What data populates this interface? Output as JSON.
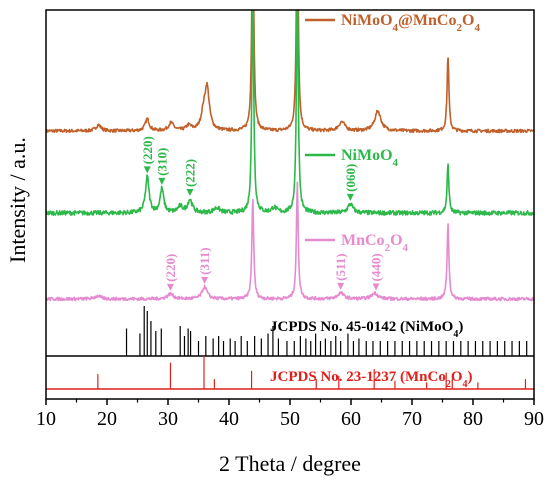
{
  "chart_data": {
    "type": "line",
    "xlabel": "2 Theta / degree",
    "ylabel": "Intensity / a.u.",
    "xlim": [
      10,
      90
    ],
    "xticks": [
      10,
      20,
      30,
      40,
      50,
      60,
      70,
      80,
      90
    ],
    "grid": false,
    "legend_placement": "inline-right",
    "colors": {
      "composite": "#c0602a",
      "nimoo4": "#2db84a",
      "mnco2o4": "#e58bd0",
      "ref_nimoo4": "#000000",
      "ref_mnco2o4": "#e0201a"
    },
    "series": [
      {
        "key": "composite",
        "name": "NiMoO₄@MnCo₂O₄",
        "name_main": "NiMoO",
        "name_sub1": "4",
        "name_mid": "@MnCo",
        "name_sub2": "2",
        "name_mid2": "O",
        "name_sub3": "4",
        "peaks": [
          {
            "x": 18.6,
            "h": 6,
            "w": 0.5
          },
          {
            "x": 26.6,
            "h": 12,
            "w": 0.4
          },
          {
            "x": 30.5,
            "h": 8,
            "w": 0.5
          },
          {
            "x": 33.4,
            "h": 5,
            "w": 0.5
          },
          {
            "x": 35.8,
            "h": 14,
            "w": 0.45
          },
          {
            "x": 36.4,
            "h": 42,
            "w": 0.45
          },
          {
            "x": 43.9,
            "h": 230,
            "w": 0.18
          },
          {
            "x": 51.2,
            "h": 230,
            "w": 0.18
          },
          {
            "x": 58.5,
            "h": 9,
            "w": 0.6
          },
          {
            "x": 64.4,
            "h": 20,
            "w": 0.6
          },
          {
            "x": 75.9,
            "h": 75,
            "w": 0.18
          }
        ]
      },
      {
        "key": "nimoo4",
        "name": "NiMoO₄",
        "name_main": "NiMoO",
        "name_sub1": "4",
        "peaks": [
          {
            "x": 26.6,
            "h": 36,
            "w": 0.35
          },
          {
            "x": 29.0,
            "h": 24,
            "w": 0.35
          },
          {
            "x": 32.0,
            "h": 6,
            "w": 0.5
          },
          {
            "x": 33.6,
            "h": 13,
            "w": 0.45
          },
          {
            "x": 38.0,
            "h": 5,
            "w": 0.6
          },
          {
            "x": 43.9,
            "h": 230,
            "w": 0.18
          },
          {
            "x": 47.4,
            "h": 5,
            "w": 0.5
          },
          {
            "x": 51.2,
            "h": 230,
            "w": 0.18
          },
          {
            "x": 59.9,
            "h": 9,
            "w": 0.5
          },
          {
            "x": 75.9,
            "h": 48,
            "w": 0.18
          }
        ]
      },
      {
        "key": "mnco2o4",
        "name": "MnCo₂O₄",
        "name_main": "MnCo",
        "name_sub1": "2",
        "name_mid": "O",
        "name_sub2": "4",
        "peaks": [
          {
            "x": 18.5,
            "h": 3,
            "w": 0.6
          },
          {
            "x": 30.4,
            "h": 5,
            "w": 0.6
          },
          {
            "x": 36.0,
            "h": 12,
            "w": 0.5
          },
          {
            "x": 43.9,
            "h": 100,
            "w": 0.18
          },
          {
            "x": 51.2,
            "h": 115,
            "w": 0.18
          },
          {
            "x": 58.3,
            "h": 6,
            "w": 0.6
          },
          {
            "x": 63.9,
            "h": 6,
            "w": 0.6
          },
          {
            "x": 75.9,
            "h": 75,
            "w": 0.18
          }
        ]
      }
    ],
    "annotations": [
      {
        "label": "(220)",
        "x": 26.6,
        "series": "nimoo4"
      },
      {
        "label": "(310)",
        "x": 29.0,
        "series": "nimoo4"
      },
      {
        "label": "(222)",
        "x": 33.6,
        "series": "nimoo4"
      },
      {
        "label": "(060)",
        "x": 59.9,
        "series": "nimoo4"
      },
      {
        "label": "(220)",
        "x": 30.4,
        "series": "mnco2o4"
      },
      {
        "label": "(311)",
        "x": 36.0,
        "series": "mnco2o4"
      },
      {
        "label": "(511)",
        "x": 58.3,
        "series": "mnco2o4"
      },
      {
        "label": "(440)",
        "x": 64.1,
        "series": "mnco2o4"
      }
    ],
    "references": [
      {
        "key": "ref_nimoo4",
        "label_main": "JCPDS No. 45-0142 (NiMoO",
        "label_sub": "4",
        "label_end": ")",
        "lines": [
          {
            "x": 23.2,
            "h": 0.55
          },
          {
            "x": 25.4,
            "h": 0.45
          },
          {
            "x": 26.1,
            "h": 1.0
          },
          {
            "x": 26.6,
            "h": 0.9
          },
          {
            "x": 27.2,
            "h": 0.7
          },
          {
            "x": 28.0,
            "h": 0.5
          },
          {
            "x": 28.9,
            "h": 0.55
          },
          {
            "x": 32.0,
            "h": 0.6
          },
          {
            "x": 32.7,
            "h": 0.4
          },
          {
            "x": 33.3,
            "h": 0.55
          },
          {
            "x": 33.7,
            "h": 0.5
          },
          {
            "x": 35.0,
            "h": 0.3
          },
          {
            "x": 36.2,
            "h": 0.4
          },
          {
            "x": 37.4,
            "h": 0.35
          },
          {
            "x": 38.3,
            "h": 0.4
          },
          {
            "x": 39.1,
            "h": 0.3
          },
          {
            "x": 40.2,
            "h": 0.35
          },
          {
            "x": 41.0,
            "h": 0.3
          },
          {
            "x": 42.0,
            "h": 0.4
          },
          {
            "x": 43.0,
            "h": 0.3
          },
          {
            "x": 44.2,
            "h": 0.4
          },
          {
            "x": 45.3,
            "h": 0.35
          },
          {
            "x": 46.4,
            "h": 0.45
          },
          {
            "x": 47.2,
            "h": 0.6
          },
          {
            "x": 48.1,
            "h": 0.35
          },
          {
            "x": 49.5,
            "h": 0.3
          },
          {
            "x": 50.7,
            "h": 0.3
          },
          {
            "x": 51.7,
            "h": 0.4
          },
          {
            "x": 52.6,
            "h": 0.35
          },
          {
            "x": 53.4,
            "h": 0.3
          },
          {
            "x": 54.2,
            "h": 0.45
          },
          {
            "x": 55.0,
            "h": 0.3
          },
          {
            "x": 55.8,
            "h": 0.35
          },
          {
            "x": 56.7,
            "h": 0.3
          },
          {
            "x": 57.5,
            "h": 0.4
          },
          {
            "x": 58.3,
            "h": 0.3
          },
          {
            "x": 59.5,
            "h": 0.45
          },
          {
            "x": 60.4,
            "h": 0.3
          },
          {
            "x": 61.3,
            "h": 0.35
          },
          {
            "x": 62.5,
            "h": 0.3
          },
          {
            "x": 63.6,
            "h": 0.3
          },
          {
            "x": 64.8,
            "h": 0.3
          },
          {
            "x": 66.0,
            "h": 0.3
          },
          {
            "x": 67.2,
            "h": 0.3
          },
          {
            "x": 68.4,
            "h": 0.3
          },
          {
            "x": 69.6,
            "h": 0.3
          },
          {
            "x": 70.8,
            "h": 0.3
          },
          {
            "x": 72.0,
            "h": 0.3
          },
          {
            "x": 73.2,
            "h": 0.3
          },
          {
            "x": 74.4,
            "h": 0.3
          },
          {
            "x": 75.6,
            "h": 0.3
          },
          {
            "x": 76.8,
            "h": 0.3
          },
          {
            "x": 78.0,
            "h": 0.3
          },
          {
            "x": 79.2,
            "h": 0.3
          },
          {
            "x": 80.4,
            "h": 0.3
          },
          {
            "x": 81.6,
            "h": 0.3
          },
          {
            "x": 82.8,
            "h": 0.3
          },
          {
            "x": 84.0,
            "h": 0.3
          },
          {
            "x": 85.2,
            "h": 0.3
          },
          {
            "x": 86.4,
            "h": 0.3
          },
          {
            "x": 87.6,
            "h": 0.3
          },
          {
            "x": 88.8,
            "h": 0.3
          }
        ]
      },
      {
        "key": "ref_mnco2o4",
        "label_main": "JCPDS No. 23-1237 (MnCo",
        "label_sub1": "2",
        "label_mid": "O",
        "label_sub2": "4",
        "label_end": ")",
        "lines": [
          {
            "x": 18.5,
            "h": 0.45
          },
          {
            "x": 30.4,
            "h": 0.8
          },
          {
            "x": 35.9,
            "h": 1.0
          },
          {
            "x": 37.6,
            "h": 0.3
          },
          {
            "x": 43.7,
            "h": 0.55
          },
          {
            "x": 54.3,
            "h": 0.3
          },
          {
            "x": 58.0,
            "h": 0.4
          },
          {
            "x": 63.8,
            "h": 0.6
          },
          {
            "x": 67.2,
            "h": 0.25
          },
          {
            "x": 72.4,
            "h": 0.2
          },
          {
            "x": 75.6,
            "h": 0.5
          },
          {
            "x": 76.6,
            "h": 0.3
          },
          {
            "x": 80.8,
            "h": 0.2
          },
          {
            "x": 88.6,
            "h": 0.3
          }
        ]
      }
    ]
  }
}
